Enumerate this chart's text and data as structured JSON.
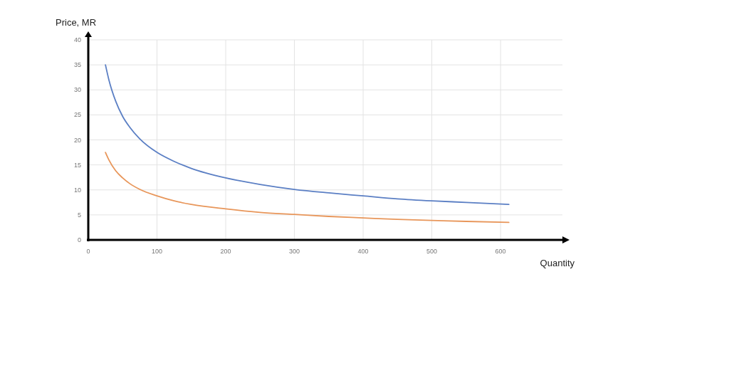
{
  "chart_data": {
    "type": "line",
    "xlabel": "Quantity",
    "ylabel": "Price, MR",
    "xlim": [
      0,
      690
    ],
    "xticks": [
      0,
      100,
      200,
      300,
      400,
      500,
      600
    ],
    "ylim": [
      0,
      40
    ],
    "yticks": [
      0,
      5,
      10,
      15,
      20,
      25,
      30,
      35,
      40
    ],
    "grid": true,
    "marker": "none",
    "line_style": "solid",
    "series": [
      {
        "color": "#5b7fc4",
        "x": [
          25,
          30,
          40,
          50,
          60,
          75,
          100,
          125,
          150,
          200,
          250,
          300,
          350,
          400,
          450,
          500,
          550,
          612
        ],
        "values": [
          35,
          32,
          27.7,
          24.7,
          22.6,
          20.2,
          17.5,
          15.7,
          14.3,
          12.4,
          11.1,
          10.1,
          9.4,
          8.8,
          8.2,
          7.8,
          7.5,
          7.1
        ]
      },
      {
        "color": "#e8965a",
        "x": [
          25,
          30,
          40,
          50,
          60,
          75,
          100,
          125,
          150,
          200,
          250,
          300,
          350,
          400,
          450,
          500,
          550,
          612
        ],
        "values": [
          17.5,
          16,
          13.8,
          12.4,
          11.3,
          10.1,
          8.8,
          7.8,
          7.1,
          6.2,
          5.5,
          5.1,
          4.7,
          4.4,
          4.1,
          3.9,
          3.7,
          3.5
        ]
      }
    ]
  }
}
